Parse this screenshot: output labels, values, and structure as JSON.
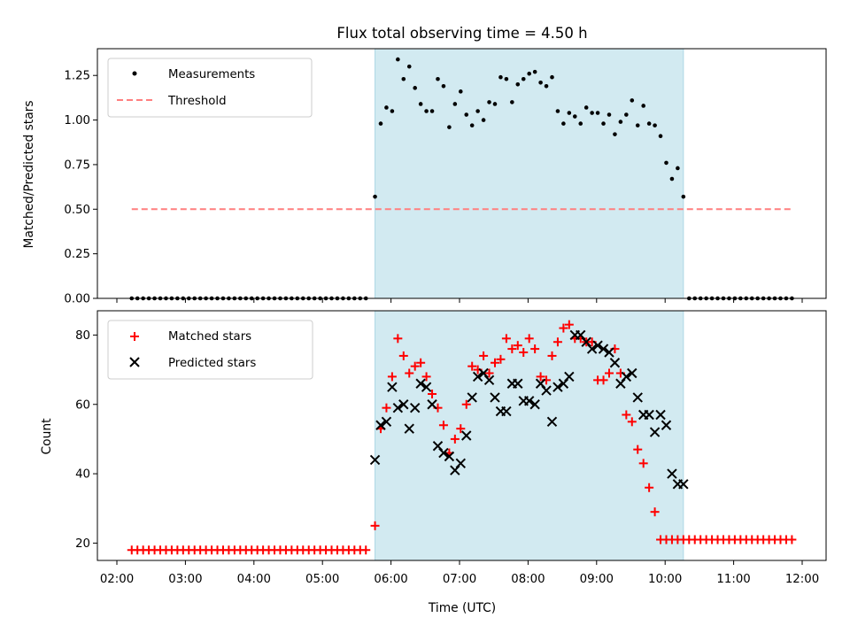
{
  "chart_data": {
    "title": "Flux total observing time = 4.50 h",
    "type": "scatter",
    "xlabel": "Time (UTC)",
    "x_ticks": [
      "02:00",
      "03:00",
      "04:00",
      "05:00",
      "06:00",
      "07:00",
      "08:00",
      "09:00",
      "10:00",
      "11:00",
      "12:00"
    ],
    "observing_window": {
      "start": "05:46",
      "end": "10:16",
      "color": "#add8e6"
    },
    "top": {
      "type": "scatter",
      "ylabel": "Matched/Predicted stars",
      "ylim": [
        0,
        1.4
      ],
      "y_ticks": [
        "0.00",
        "0.25",
        "0.50",
        "0.75",
        "1.00",
        "1.25"
      ],
      "legend_position": "upper-left",
      "series": [
        {
          "name": "Measurements",
          "marker": "dot",
          "color": "#000000",
          "x": [
            "05:46",
            "05:51",
            "05:56",
            "06:01",
            "06:06",
            "06:11",
            "06:16",
            "06:21",
            "06:26",
            "06:31",
            "06:36",
            "06:41",
            "06:46",
            "06:51",
            "06:56",
            "07:01",
            "07:06",
            "07:11",
            "07:16",
            "07:21",
            "07:26",
            "07:31",
            "07:36",
            "07:41",
            "07:46",
            "07:51",
            "07:56",
            "08:01",
            "08:06",
            "08:11",
            "08:16",
            "08:21",
            "08:26",
            "08:31",
            "08:36",
            "08:41",
            "08:46",
            "08:51",
            "08:56",
            "09:01",
            "09:06",
            "09:11",
            "09:16",
            "09:21",
            "09:26",
            "09:31",
            "09:36",
            "09:41",
            "09:46",
            "09:51",
            "09:56",
            "10:01",
            "10:06",
            "10:11",
            "10:16"
          ],
          "y": [
            0.57,
            0.98,
            1.07,
            1.05,
            1.34,
            1.23,
            1.3,
            1.18,
            1.09,
            1.05,
            1.05,
            1.23,
            1.19,
            0.96,
            1.09,
            1.16,
            1.03,
            0.97,
            1.05,
            1.0,
            1.1,
            1.09,
            1.24,
            1.23,
            1.1,
            1.2,
            1.23,
            1.26,
            1.27,
            1.21,
            1.19,
            1.24,
            1.05,
            0.98,
            1.04,
            1.02,
            0.98,
            1.07,
            1.04,
            1.04,
            0.98,
            1.03,
            0.92,
            0.99,
            1.03,
            1.11,
            0.97,
            1.08,
            0.98,
            0.97,
            0.91,
            0.76,
            0.67,
            0.73,
            0.57
          ],
          "zero_segments": [
            {
              "from": "02:13",
              "to": "05:41",
              "step_minutes": 5,
              "value": 0
            },
            {
              "from": "10:21",
              "to": "11:51",
              "step_minutes": 5,
              "value": 0
            }
          ]
        },
        {
          "name": "Threshold",
          "style": "dashed-line",
          "color": "#ff7f7f",
          "x": [
            "02:13",
            "11:51"
          ],
          "y": [
            0.5,
            0.5
          ]
        }
      ]
    },
    "bottom": {
      "type": "scatter",
      "ylabel": "Count",
      "ylim": [
        15,
        87
      ],
      "y_ticks": [
        "20",
        "40",
        "60",
        "80"
      ],
      "legend_position": "upper-left",
      "series": [
        {
          "name": "Matched stars",
          "marker": "plus",
          "color": "#ff0000",
          "x": [
            "05:46",
            "05:51",
            "05:56",
            "06:01",
            "06:06",
            "06:11",
            "06:16",
            "06:21",
            "06:26",
            "06:31",
            "06:36",
            "06:41",
            "06:46",
            "06:51",
            "06:56",
            "07:01",
            "07:06",
            "07:11",
            "07:16",
            "07:21",
            "07:26",
            "07:31",
            "07:36",
            "07:41",
            "07:46",
            "07:51",
            "07:56",
            "08:01",
            "08:06",
            "08:11",
            "08:16",
            "08:21",
            "08:26",
            "08:31",
            "08:36",
            "08:41",
            "08:46",
            "08:51",
            "08:56",
            "09:01",
            "09:06",
            "09:11",
            "09:16",
            "09:21",
            "09:26",
            "09:31",
            "09:36",
            "09:41",
            "09:46",
            "09:51",
            "09:56",
            "10:01",
            "10:06",
            "10:11",
            "10:16"
          ],
          "y": [
            25,
            53,
            59,
            68,
            79,
            74,
            69,
            71,
            72,
            68,
            63,
            59,
            54,
            46,
            50,
            53,
            60,
            71,
            70,
            74,
            69,
            72,
            73,
            79,
            76,
            77,
            75,
            79,
            76,
            68,
            67,
            74,
            78,
            82,
            83,
            79,
            79,
            78,
            78,
            67,
            67,
            69,
            76,
            69,
            57,
            55,
            47,
            43,
            36,
            29,
            21,
            21,
            21,
            21,
            21
          ],
          "flat_segments": [
            {
              "from": "02:13",
              "to": "05:41",
              "step_minutes": 5,
              "value": 18
            },
            {
              "from": "10:21",
              "to": "11:51",
              "step_minutes": 5,
              "value": 21
            }
          ]
        },
        {
          "name": "Predicted stars",
          "marker": "x",
          "color": "#000000",
          "x": [
            "05:46",
            "05:51",
            "05:56",
            "06:01",
            "06:06",
            "06:11",
            "06:16",
            "06:21",
            "06:26",
            "06:31",
            "06:36",
            "06:41",
            "06:46",
            "06:51",
            "06:56",
            "07:01",
            "07:06",
            "07:11",
            "07:16",
            "07:21",
            "07:26",
            "07:31",
            "07:36",
            "07:41",
            "07:46",
            "07:51",
            "07:56",
            "08:01",
            "08:06",
            "08:11",
            "08:16",
            "08:21",
            "08:26",
            "08:31",
            "08:36",
            "08:41",
            "08:46",
            "08:51",
            "08:56",
            "09:01",
            "09:06",
            "09:11",
            "09:16",
            "09:21",
            "09:26",
            "09:31",
            "09:36",
            "09:41",
            "09:46",
            "09:51",
            "09:56",
            "10:01",
            "10:06",
            "10:11",
            "10:16"
          ],
          "y": [
            44,
            54,
            55,
            65,
            59,
            60,
            53,
            59,
            66,
            65,
            60,
            48,
            46,
            45,
            41,
            43,
            51,
            62,
            68,
            69,
            67,
            62,
            58,
            58,
            66,
            66,
            61,
            61,
            60,
            66,
            64,
            55,
            65,
            66,
            68,
            80,
            80,
            78,
            76,
            77,
            76,
            75,
            72,
            66,
            68,
            69,
            62,
            57,
            57,
            52,
            57,
            54,
            40,
            37,
            37
          ]
        }
      ]
    }
  }
}
